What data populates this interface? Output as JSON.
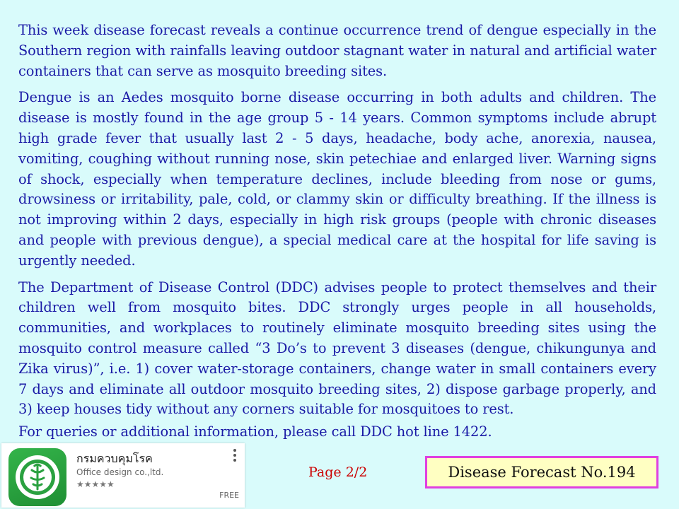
{
  "paragraphs": [
    "This week disease forecast reveals a continue occurrence trend of dengue especially in the Southern region with rainfalls leaving outdoor stagnant water in natural and artificial water containers that can serve as mosquito breeding sites.",
    "Dengue is an Aedes mosquito borne disease occurring in both adults and children. The disease is mostly found in the age group 5 - 14 years. Common symptoms include abrupt high grade fever that usually last 2 - 5 days, headache, body ache, anorexia, nausea, vomiting, coughing without running nose, skin petechiae and enlarged liver. Warning signs of shock, especially when temperature declines, include bleeding from nose or gums, drowsiness or irritability, pale, cold, or clammy skin or difficulty breathing. If the illness is not improving within 2 days, especially in high risk groups  (people with chronic diseases and people with previous dengue), a special medical care at the hospital for life saving is urgently needed.",
    "The Department of Disease Control (DDC) advises people to protect themselves and their children well from mosquito bites. DDC strongly urges people in all households, communities, and workplaces to routinely eliminate mosquito breeding sites using the mosquito control measure called “3 Do’s to prevent 3 diseases (dengue, chikungunya and Zika virus)”, i.e. 1) cover water-storage containers, change water in small containers every 7 days and eliminate all outdoor mosquito breeding sites, 2) dispose garbage properly, and 3) keep houses tidy without any corners suitable for mosquitoes to rest.",
    "For queries or additional information, please call DDC hot line 1422."
  ],
  "app_card": {
    "name": "กรมควบคุมโรค",
    "developer": "Office design co.,ltd.",
    "stars": "★★★★★",
    "price": "FREE"
  },
  "footer": {
    "page": "Page 2/2",
    "forecast_label": "Disease Forecast No.194"
  },
  "colors": {
    "background": "#d9fbfb",
    "body_text": "#1a1aa6",
    "page_number": "#cc0000",
    "box_border": "#e040e0",
    "box_fill": "#ffffc2"
  }
}
